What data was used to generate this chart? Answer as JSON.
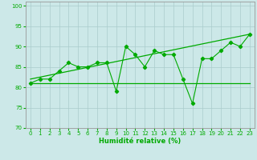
{
  "xlabel": "Humidité relative (%)",
  "background_color": "#cce8e8",
  "grid_color": "#aacccc",
  "line_color": "#00aa00",
  "xlim": [
    -0.5,
    23.5
  ],
  "ylim": [
    70,
    101
  ],
  "yticks": [
    70,
    75,
    80,
    85,
    90,
    95,
    100
  ],
  "xticks": [
    0,
    1,
    2,
    3,
    4,
    5,
    6,
    7,
    8,
    9,
    10,
    11,
    12,
    13,
    14,
    15,
    16,
    17,
    18,
    19,
    20,
    21,
    22,
    23
  ],
  "series_main": [
    81,
    82,
    82,
    84,
    86,
    85,
    85,
    86,
    86,
    79,
    90,
    88,
    85,
    89,
    88,
    88,
    82,
    76,
    87,
    87,
    89,
    91,
    90,
    93
  ],
  "upper_line_x": [
    0,
    23
  ],
  "upper_line_y": [
    82,
    93
  ],
  "lower_line_x": [
    0,
    23
  ],
  "lower_line_y": [
    81,
    81
  ],
  "xlabel_fontsize": 6,
  "tick_fontsize": 5
}
